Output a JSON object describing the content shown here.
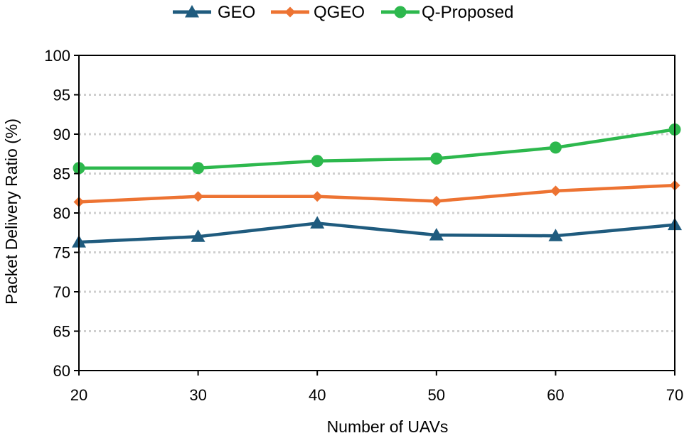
{
  "chart_data": {
    "type": "line",
    "title": "",
    "xlabel": "Number of UAVs",
    "ylabel": "Packet Delivery Ratio (%)",
    "x": [
      20,
      30,
      40,
      50,
      60,
      70
    ],
    "x_tick_labels": [
      "20",
      "30",
      "40",
      "50",
      "60",
      "70"
    ],
    "ylim": [
      60,
      100
    ],
    "y_ticks": [
      60,
      65,
      70,
      75,
      80,
      85,
      90,
      95,
      100
    ],
    "y_tick_labels": [
      "60",
      "65",
      "70",
      "75",
      "80",
      "85",
      "90",
      "95",
      "100"
    ],
    "grid": true,
    "legend_position": "top",
    "series": [
      {
        "name": "GEO",
        "marker": "triangle",
        "color": "#1f5b7e",
        "values": [
          76.3,
          77.0,
          78.7,
          77.2,
          77.1,
          78.5
        ]
      },
      {
        "name": "QGEO",
        "marker": "diamond",
        "color": "#ed7332",
        "values": [
          81.4,
          82.1,
          82.1,
          81.5,
          82.8,
          83.5
        ]
      },
      {
        "name": "Q-Proposed",
        "marker": "circle",
        "color": "#2db84d",
        "values": [
          85.7,
          85.7,
          86.6,
          86.9,
          88.3,
          90.6
        ]
      }
    ]
  }
}
